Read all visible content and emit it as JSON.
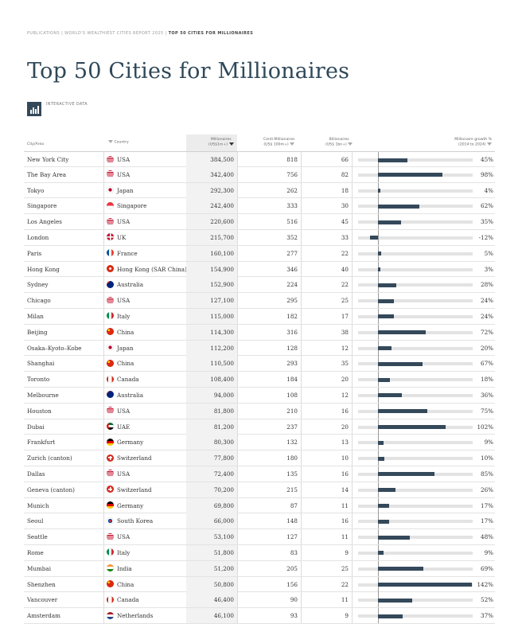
{
  "breadcrumb": {
    "part1": "PUBLICATIONS",
    "part2": "WORLD'S WEALTHIEST CITIES REPORT 2025",
    "current": "TOP 50 CITIES FOR MILLIONAIRES",
    "separator": "|"
  },
  "page_title": "Top 50 Cities for Millionaires",
  "badge_label": "INTERACTIVE DATA",
  "columns": {
    "city": "City/Area",
    "country": "Country",
    "millionaires_line1": "Millionaires",
    "millionaires_line2": "(US$1m+)",
    "centi_line1": "Centi-Millionaires",
    "centi_line2": "(US$ 100m+)",
    "billionaires_line1": "Billionaires",
    "billionaires_line2": "(US$ 1bn+)",
    "growth_line1": "Millionaire growth %",
    "growth_line2": "(2014 to 2024)"
  },
  "colors": {
    "accent": "#2f4858",
    "bar_fill": "#34495a",
    "bar_track": "#e3e3e3",
    "sorted_column_bg": "#f2f2f2"
  },
  "rows": [
    {
      "city": "New York City",
      "flag": "us-flag",
      "country": "USA",
      "millionaires": "384,500",
      "centi": "818",
      "billionaires": "66",
      "growth": 45,
      "growth_label": "45%"
    },
    {
      "city": "The Bay Area",
      "flag": "us-flag",
      "country": "USA",
      "millionaires": "342,400",
      "centi": "756",
      "billionaires": "82",
      "growth": 98,
      "growth_label": "98%"
    },
    {
      "city": "Tokyo",
      "flag": "jp-flag",
      "country": "Japan",
      "millionaires": "292,300",
      "centi": "262",
      "billionaires": "18",
      "growth": 4,
      "growth_label": "4%"
    },
    {
      "city": "Singapore",
      "flag": "sg-flag",
      "country": "Singapore",
      "millionaires": "242,400",
      "centi": "333",
      "billionaires": "30",
      "growth": 62,
      "growth_label": "62%"
    },
    {
      "city": "Los Angeles",
      "flag": "us-flag",
      "country": "USA",
      "millionaires": "220,600",
      "centi": "516",
      "billionaires": "45",
      "growth": 35,
      "growth_label": "35%"
    },
    {
      "city": "London",
      "flag": "uk-flag",
      "country": "UK",
      "millionaires": "215,700",
      "centi": "352",
      "billionaires": "33",
      "growth": -12,
      "growth_label": "-12%"
    },
    {
      "city": "Paris",
      "flag": "fr-flag",
      "country": "France",
      "millionaires": "160,100",
      "centi": "277",
      "billionaires": "22",
      "growth": 5,
      "growth_label": "5%"
    },
    {
      "city": "Hong Kong",
      "flag": "hk-flag",
      "country": "Hong Kong (SAR China)",
      "millionaires": "154,900",
      "centi": "346",
      "billionaires": "40",
      "growth": 3,
      "growth_label": "3%"
    },
    {
      "city": "Sydney",
      "flag": "au-flag",
      "country": "Australia",
      "millionaires": "152,900",
      "centi": "224",
      "billionaires": "22",
      "growth": 28,
      "growth_label": "28%"
    },
    {
      "city": "Chicago",
      "flag": "us-flag",
      "country": "USA",
      "millionaires": "127,100",
      "centi": "295",
      "billionaires": "25",
      "growth": 24,
      "growth_label": "24%"
    },
    {
      "city": "Milan",
      "flag": "it-flag",
      "country": "Italy",
      "millionaires": "115,000",
      "centi": "182",
      "billionaires": "17",
      "growth": 24,
      "growth_label": "24%"
    },
    {
      "city": "Beijing",
      "flag": "cn-flag",
      "country": "China",
      "millionaires": "114,300",
      "centi": "316",
      "billionaires": "38",
      "growth": 72,
      "growth_label": "72%"
    },
    {
      "city": "Osaka–Kyoto–Kobe",
      "flag": "jp-flag",
      "country": "Japan",
      "millionaires": "112,200",
      "centi": "128",
      "billionaires": "12",
      "growth": 20,
      "growth_label": "20%"
    },
    {
      "city": "Shanghai",
      "flag": "cn-flag",
      "country": "China",
      "millionaires": "110,500",
      "centi": "293",
      "billionaires": "35",
      "growth": 67,
      "growth_label": "67%"
    },
    {
      "city": "Toronto",
      "flag": "ca-flag",
      "country": "Canada",
      "millionaires": "108,400",
      "centi": "184",
      "billionaires": "20",
      "growth": 18,
      "growth_label": "18%"
    },
    {
      "city": "Melbourne",
      "flag": "au-flag",
      "country": "Australia",
      "millionaires": "94,000",
      "centi": "108",
      "billionaires": "12",
      "growth": 36,
      "growth_label": "36%"
    },
    {
      "city": "Houston",
      "flag": "us-flag",
      "country": "USA",
      "millionaires": "81,800",
      "centi": "210",
      "billionaires": "16",
      "growth": 75,
      "growth_label": "75%"
    },
    {
      "city": "Dubai",
      "flag": "ae-flag",
      "country": "UAE",
      "millionaires": "81,200",
      "centi": "237",
      "billionaires": "20",
      "growth": 102,
      "growth_label": "102%"
    },
    {
      "city": "Frankfurt",
      "flag": "de-flag",
      "country": "Germany",
      "millionaires": "80,300",
      "centi": "132",
      "billionaires": "13",
      "growth": 9,
      "growth_label": "9%"
    },
    {
      "city": "Zurich (canton)",
      "flag": "ch-flag",
      "country": "Switzerland",
      "millionaires": "77,800",
      "centi": "180",
      "billionaires": "10",
      "growth": 10,
      "growth_label": "10%"
    },
    {
      "city": "Dallas",
      "flag": "us-flag",
      "country": "USA",
      "millionaires": "72,400",
      "centi": "135",
      "billionaires": "16",
      "growth": 85,
      "growth_label": "85%"
    },
    {
      "city": "Geneva (canton)",
      "flag": "ch-flag",
      "country": "Switzerland",
      "millionaires": "70,200",
      "centi": "215",
      "billionaires": "14",
      "growth": 26,
      "growth_label": "26%"
    },
    {
      "city": "Munich",
      "flag": "de-flag",
      "country": "Germany",
      "millionaires": "69,800",
      "centi": "87",
      "billionaires": "11",
      "growth": 17,
      "growth_label": "17%"
    },
    {
      "city": "Seoul",
      "flag": "kr-flag",
      "country": "South Korea",
      "millionaires": "66,000",
      "centi": "148",
      "billionaires": "16",
      "growth": 17,
      "growth_label": "17%"
    },
    {
      "city": "Seattle",
      "flag": "us-flag",
      "country": "USA",
      "millionaires": "53,100",
      "centi": "127",
      "billionaires": "11",
      "growth": 48,
      "growth_label": "48%"
    },
    {
      "city": "Rome",
      "flag": "it-flag",
      "country": "Italy",
      "millionaires": "51,800",
      "centi": "83",
      "billionaires": "9",
      "growth": 9,
      "growth_label": "9%"
    },
    {
      "city": "Mumbai",
      "flag": "in-flag",
      "country": "India",
      "millionaires": "51,200",
      "centi": "205",
      "billionaires": "25",
      "growth": 69,
      "growth_label": "69%"
    },
    {
      "city": "Shenzhen",
      "flag": "cn-flag",
      "country": "China",
      "millionaires": "50,800",
      "centi": "156",
      "billionaires": "22",
      "growth": 142,
      "growth_label": "142%"
    },
    {
      "city": "Vancouver",
      "flag": "ca-flag",
      "country": "Canada",
      "millionaires": "46,400",
      "centi": "90",
      "billionaires": "11",
      "growth": 52,
      "growth_label": "52%"
    },
    {
      "city": "Amsterdam",
      "flag": "nl-flag",
      "country": "Netherlands",
      "millionaires": "46,100",
      "centi": "93",
      "billionaires": "9",
      "growth": 37,
      "growth_label": "37%"
    }
  ]
}
